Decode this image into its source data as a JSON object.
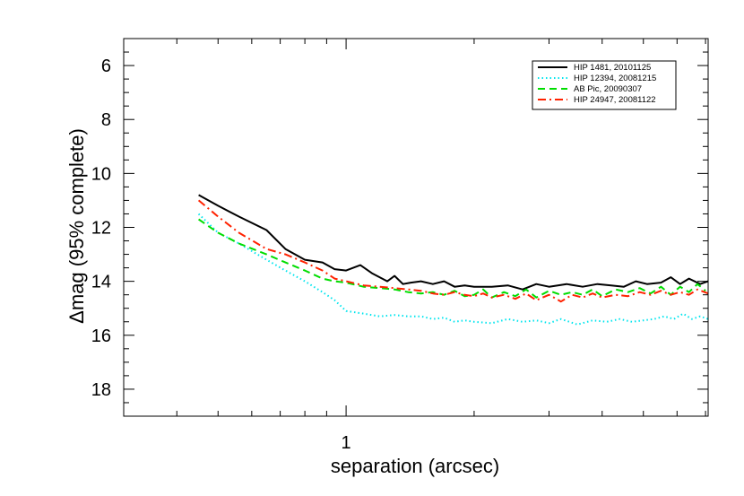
{
  "chart_data": {
    "type": "line",
    "title": "",
    "xlabel": "separation (arcsec)",
    "ylabel": "Δmag (95% complete)",
    "x_scale": "log",
    "xlim": [
      0.3,
      7.1
    ],
    "ylim": [
      19,
      5
    ],
    "y_inverted": true,
    "x_tick_labels": [
      {
        "value": 1,
        "label": "1"
      }
    ],
    "y_tick_labels": [
      {
        "value": 6,
        "label": "6"
      },
      {
        "value": 8,
        "label": "8"
      },
      {
        "value": 10,
        "label": "10"
      },
      {
        "value": 12,
        "label": "12"
      },
      {
        "value": 14,
        "label": "14"
      },
      {
        "value": 16,
        "label": "16"
      },
      {
        "value": 18,
        "label": "18"
      }
    ],
    "legend_position": "top-right",
    "grid": false,
    "series": [
      {
        "name": "HIP 1481, 20101125",
        "color": "#000000",
        "linestyle": "solid",
        "points": [
          [
            0.45,
            10.8
          ],
          [
            0.5,
            11.2
          ],
          [
            0.56,
            11.6
          ],
          [
            0.65,
            12.1
          ],
          [
            0.72,
            12.8
          ],
          [
            0.8,
            13.2
          ],
          [
            0.88,
            13.3
          ],
          [
            0.94,
            13.55
          ],
          [
            1.0,
            13.6
          ],
          [
            1.08,
            13.4
          ],
          [
            1.15,
            13.7
          ],
          [
            1.25,
            14.0
          ],
          [
            1.3,
            13.8
          ],
          [
            1.36,
            14.1
          ],
          [
            1.42,
            14.05
          ],
          [
            1.5,
            14.0
          ],
          [
            1.6,
            14.1
          ],
          [
            1.7,
            14.0
          ],
          [
            1.8,
            14.2
          ],
          [
            1.9,
            14.15
          ],
          [
            2.0,
            14.2
          ],
          [
            2.2,
            14.2
          ],
          [
            2.4,
            14.15
          ],
          [
            2.6,
            14.3
          ],
          [
            2.8,
            14.1
          ],
          [
            3.0,
            14.2
          ],
          [
            3.3,
            14.1
          ],
          [
            3.6,
            14.2
          ],
          [
            3.9,
            14.1
          ],
          [
            4.2,
            14.15
          ],
          [
            4.5,
            14.2
          ],
          [
            4.8,
            14.0
          ],
          [
            5.1,
            14.1
          ],
          [
            5.5,
            14.05
          ],
          [
            5.8,
            13.85
          ],
          [
            6.1,
            14.1
          ],
          [
            6.4,
            13.9
          ],
          [
            6.8,
            14.1
          ],
          [
            7.1,
            14.0
          ]
        ]
      },
      {
        "name": "HIP 12394, 20081215",
        "color": "#00e5ee",
        "linestyle": "dotted",
        "points": [
          [
            0.45,
            11.5
          ],
          [
            0.5,
            12.2
          ],
          [
            0.56,
            12.6
          ],
          [
            0.65,
            13.2
          ],
          [
            0.72,
            13.6
          ],
          [
            0.8,
            14.0
          ],
          [
            0.88,
            14.4
          ],
          [
            0.94,
            14.7
          ],
          [
            1.0,
            15.1
          ],
          [
            1.1,
            15.2
          ],
          [
            1.2,
            15.3
          ],
          [
            1.3,
            15.25
          ],
          [
            1.4,
            15.3
          ],
          [
            1.5,
            15.3
          ],
          [
            1.6,
            15.4
          ],
          [
            1.7,
            15.35
          ],
          [
            1.8,
            15.5
          ],
          [
            1.9,
            15.45
          ],
          [
            2.0,
            15.5
          ],
          [
            2.2,
            15.55
          ],
          [
            2.4,
            15.4
          ],
          [
            2.6,
            15.5
          ],
          [
            2.8,
            15.45
          ],
          [
            3.0,
            15.55
          ],
          [
            3.2,
            15.4
          ],
          [
            3.5,
            15.6
          ],
          [
            3.8,
            15.45
          ],
          [
            4.1,
            15.5
          ],
          [
            4.4,
            15.4
          ],
          [
            4.7,
            15.5
          ],
          [
            5.0,
            15.45
          ],
          [
            5.3,
            15.4
          ],
          [
            5.6,
            15.3
          ],
          [
            5.9,
            15.4
          ],
          [
            6.2,
            15.2
          ],
          [
            6.5,
            15.4
          ],
          [
            6.8,
            15.3
          ],
          [
            7.1,
            15.4
          ]
        ]
      },
      {
        "name": "AB Pic, 20090307",
        "color": "#00dd00",
        "linestyle": "dashed",
        "points": [
          [
            0.45,
            11.7
          ],
          [
            0.5,
            12.2
          ],
          [
            0.56,
            12.6
          ],
          [
            0.65,
            13.0
          ],
          [
            0.72,
            13.3
          ],
          [
            0.8,
            13.6
          ],
          [
            0.88,
            13.9
          ],
          [
            0.94,
            14.0
          ],
          [
            1.0,
            14.05
          ],
          [
            1.1,
            14.2
          ],
          [
            1.2,
            14.25
          ],
          [
            1.3,
            14.3
          ],
          [
            1.4,
            14.4
          ],
          [
            1.5,
            14.45
          ],
          [
            1.6,
            14.4
          ],
          [
            1.7,
            14.5
          ],
          [
            1.8,
            14.35
          ],
          [
            1.9,
            14.55
          ],
          [
            2.0,
            14.5
          ],
          [
            2.1,
            14.3
          ],
          [
            2.2,
            14.6
          ],
          [
            2.35,
            14.4
          ],
          [
            2.5,
            14.55
          ],
          [
            2.65,
            14.3
          ],
          [
            2.8,
            14.6
          ],
          [
            3.0,
            14.35
          ],
          [
            3.2,
            14.5
          ],
          [
            3.4,
            14.4
          ],
          [
            3.6,
            14.5
          ],
          [
            3.8,
            14.3
          ],
          [
            4.0,
            14.55
          ],
          [
            4.3,
            14.3
          ],
          [
            4.6,
            14.4
          ],
          [
            4.9,
            14.25
          ],
          [
            5.2,
            14.45
          ],
          [
            5.5,
            14.2
          ],
          [
            5.8,
            14.5
          ],
          [
            6.1,
            14.2
          ],
          [
            6.4,
            14.4
          ],
          [
            6.7,
            14.1
          ],
          [
            7.0,
            14.35
          ]
        ]
      },
      {
        "name": "HIP 24947, 20081122",
        "color": "#ff2200",
        "linestyle": "dashdot",
        "points": [
          [
            0.45,
            11.0
          ],
          [
            0.5,
            11.6
          ],
          [
            0.56,
            12.2
          ],
          [
            0.65,
            12.8
          ],
          [
            0.72,
            13.0
          ],
          [
            0.8,
            13.3
          ],
          [
            0.88,
            13.6
          ],
          [
            0.94,
            13.9
          ],
          [
            1.0,
            14.0
          ],
          [
            1.1,
            14.15
          ],
          [
            1.2,
            14.2
          ],
          [
            1.3,
            14.25
          ],
          [
            1.4,
            14.3
          ],
          [
            1.5,
            14.35
          ],
          [
            1.6,
            14.45
          ],
          [
            1.7,
            14.5
          ],
          [
            1.8,
            14.4
          ],
          [
            1.9,
            14.5
          ],
          [
            2.0,
            14.55
          ],
          [
            2.1,
            14.45
          ],
          [
            2.2,
            14.6
          ],
          [
            2.35,
            14.5
          ],
          [
            2.5,
            14.65
          ],
          [
            2.65,
            14.45
          ],
          [
            2.8,
            14.7
          ],
          [
            3.0,
            14.5
          ],
          [
            3.2,
            14.75
          ],
          [
            3.4,
            14.5
          ],
          [
            3.6,
            14.6
          ],
          [
            3.8,
            14.45
          ],
          [
            4.0,
            14.6
          ],
          [
            4.3,
            14.5
          ],
          [
            4.6,
            14.55
          ],
          [
            4.9,
            14.4
          ],
          [
            5.2,
            14.5
          ],
          [
            5.5,
            14.35
          ],
          [
            5.8,
            14.5
          ],
          [
            6.1,
            14.4
          ],
          [
            6.4,
            14.5
          ],
          [
            6.7,
            14.3
          ],
          [
            7.1,
            14.45
          ]
        ]
      }
    ]
  }
}
